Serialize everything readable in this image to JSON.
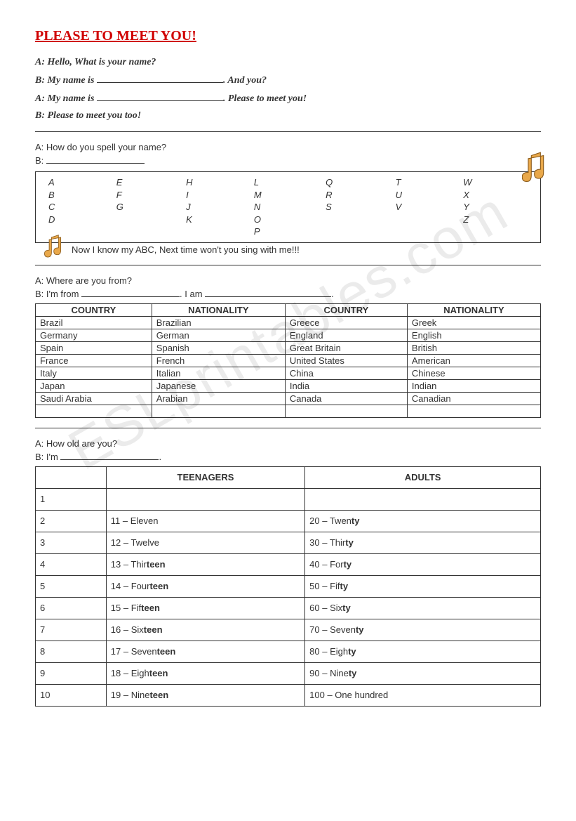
{
  "title": "PLEASE TO MEET YOU!",
  "dialogue1": {
    "a1": "A: Hello, What is your name?",
    "b1_pre": "B: My name is ",
    "b1_post": ". And you?",
    "a2_pre": "A: My name is ",
    "a2_post": ". Please to meet you!",
    "b2": "B: Please to meet you too!"
  },
  "spell": {
    "a": "A: How do you spell your name?",
    "b": "B: ",
    "abc_line": "Now I know my ABC, Next time won't you sing with me!!!",
    "cols": [
      [
        "A",
        "B",
        "C",
        "D"
      ],
      [
        "E",
        "F",
        "G"
      ],
      [
        "H",
        "I",
        "J",
        "K"
      ],
      [
        "L",
        "M",
        "N",
        "O",
        "P"
      ],
      [
        "Q",
        "R",
        "S"
      ],
      [
        "T",
        "U",
        "V"
      ],
      [
        "W",
        "X",
        "Y",
        "Z"
      ]
    ]
  },
  "from": {
    "a": "A: Where are you from?",
    "b_pre": "B: I'm from ",
    "b_mid": ". I am ",
    "b_post": "."
  },
  "country_table": {
    "headers": [
      "COUNTRY",
      "NATIONALITY",
      "COUNTRY",
      "NATIONALITY"
    ],
    "rows": [
      [
        "Brazil",
        "Brazilian",
        "Greece",
        "Greek"
      ],
      [
        "Germany",
        "German",
        "England",
        "English"
      ],
      [
        "Spain",
        "Spanish",
        "Great Britain",
        "British"
      ],
      [
        "France",
        "French",
        "United States",
        "American"
      ],
      [
        "Italy",
        "Italian",
        "China",
        "Chinese"
      ],
      [
        "Japan",
        "Japanese",
        "India",
        "Indian"
      ],
      [
        "Saudi Arabia",
        "Arabian",
        "Canada",
        "Canadian"
      ],
      [
        "",
        "",
        "",
        ""
      ]
    ]
  },
  "age": {
    "a": "A: How old are you?",
    "b": "B: I'm ",
    "headers": [
      "",
      "TEENAGERS",
      "ADULTS"
    ],
    "rows": [
      {
        "n": "1",
        "teen": "",
        "teen_b": "",
        "adult": "",
        "adult_b": ""
      },
      {
        "n": "2",
        "teen": "11 – Eleven",
        "teen_b": "",
        "adult": "20 – Twen",
        "adult_b": "ty"
      },
      {
        "n": "3",
        "teen": "12 – Twelve",
        "teen_b": "",
        "adult": "30 – Thir",
        "adult_b": "ty"
      },
      {
        "n": "4",
        "teen": "13 – Thir",
        "teen_b": "teen",
        "adult": "40 – For",
        "adult_b": "ty"
      },
      {
        "n": "5",
        "teen": "14 – Four",
        "teen_b": "teen",
        "adult": "50 – Fif",
        "adult_b": "ty"
      },
      {
        "n": "6",
        "teen": "15 – Fif",
        "teen_b": "teen",
        "adult": "60 – Six",
        "adult_b": "ty"
      },
      {
        "n": "7",
        "teen": "16 – Six",
        "teen_b": "teen",
        "adult": "70 – Seven",
        "adult_b": "ty"
      },
      {
        "n": "8",
        "teen": "17 – Seven",
        "teen_b": "teen",
        "adult": "80 – Eigh",
        "adult_b": "ty"
      },
      {
        "n": "9",
        "teen": "18 – Eigh",
        "teen_b": "teen",
        "adult": "90 – Nine",
        "adult_b": "ty"
      },
      {
        "n": "10",
        "teen": "19 – Nine",
        "teen_b": "teen",
        "adult": "100 – One hundred",
        "adult_b": ""
      }
    ]
  },
  "watermark": "ESLprintables.com",
  "colors": {
    "title": "#d00000",
    "note_fill": "#e9a84a",
    "note_stroke": "#8a5a1a",
    "border": "#333333"
  }
}
